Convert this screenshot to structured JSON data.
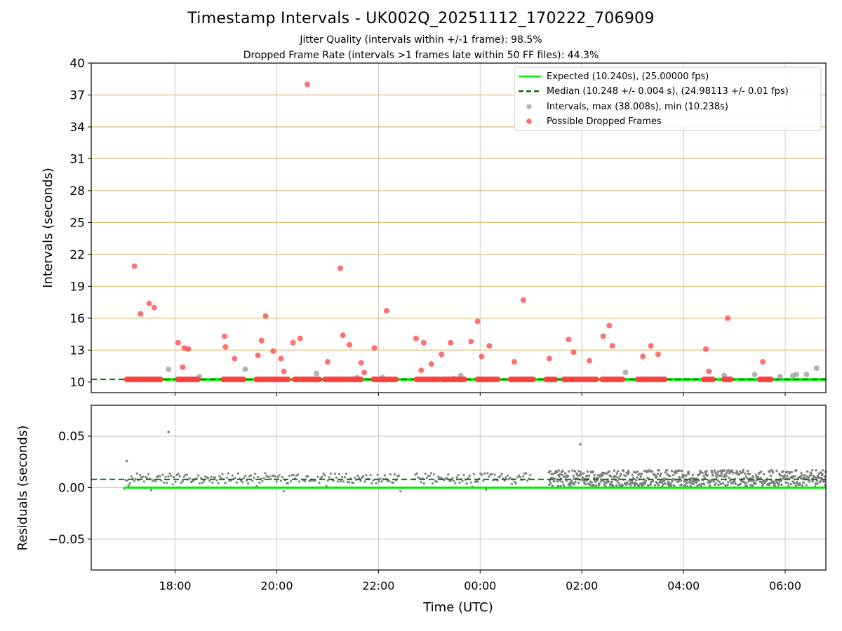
{
  "title": "Timestamp Intervals - UK002Q_20251112_170222_706909",
  "subtitle_lines": [
    "Jitter Quality (intervals within +/-1 frame): 98.5%",
    "Dropped Frame Rate (intervals >1 frames late within 50 FF files): 44.3%"
  ],
  "colors": {
    "expected": "#00ee00",
    "median": "#007700",
    "interval": "#a0a0a0",
    "dropped": "#ff4040",
    "residual": "#808080",
    "hgrid_top": "#d4b86a",
    "grid": "#c8c8c8"
  },
  "chart_data": [
    {
      "type": "scatter",
      "name": "intervals",
      "ylabel": "Intervals (seconds)",
      "ylim": [
        9,
        40
      ],
      "yticks": [
        10,
        13,
        16,
        19,
        22,
        25,
        28,
        31,
        34,
        37,
        40
      ],
      "xlim_hours": [
        16.35,
        30.8
      ],
      "legend_position": "top-right",
      "legend": [
        "Expected (10.240s), (25.00000 fps)",
        "Median (10.248 +/- 0.004 s), (24.98113 +/- 0.01 fps)",
        "Intervals, max (38.008s), min (10.238s)",
        "Possible Dropped Frames"
      ],
      "expected_value": 10.24,
      "median_value": 10.248,
      "expected_range_hours": [
        17.0,
        30.8
      ],
      "dropped_clusters": [
        [
          17.05,
          17.75
        ],
        [
          18.05,
          18.45
        ],
        [
          18.95,
          19.35
        ],
        [
          19.6,
          20.25
        ],
        [
          20.35,
          20.85
        ],
        [
          20.95,
          21.7
        ],
        [
          21.9,
          22.35
        ],
        [
          22.75,
          23.2
        ],
        [
          23.25,
          23.7
        ],
        [
          23.95,
          24.35
        ],
        [
          24.6,
          25.05
        ],
        [
          25.3,
          25.5
        ],
        [
          25.65,
          26.05
        ],
        [
          26.1,
          26.3
        ],
        [
          26.4,
          26.8
        ],
        [
          27.1,
          27.65
        ],
        [
          28.4,
          28.6
        ],
        [
          28.8,
          28.95
        ],
        [
          29.5,
          29.75
        ]
      ],
      "dropped_points": [
        {
          "x": 17.2,
          "y": 20.9
        },
        {
          "x": 17.32,
          "y": 16.4
        },
        {
          "x": 17.49,
          "y": 17.4
        },
        {
          "x": 17.59,
          "y": 17.0
        },
        {
          "x": 18.06,
          "y": 13.7
        },
        {
          "x": 18.15,
          "y": 11.4
        },
        {
          "x": 18.18,
          "y": 13.2
        },
        {
          "x": 18.26,
          "y": 13.1
        },
        {
          "x": 18.97,
          "y": 14.3
        },
        {
          "x": 18.99,
          "y": 13.3
        },
        {
          "x": 19.17,
          "y": 12.2
        },
        {
          "x": 19.63,
          "y": 12.5
        },
        {
          "x": 19.7,
          "y": 13.9
        },
        {
          "x": 19.78,
          "y": 16.2
        },
        {
          "x": 19.93,
          "y": 12.9
        },
        {
          "x": 20.08,
          "y": 12.2
        },
        {
          "x": 20.14,
          "y": 11.0
        },
        {
          "x": 20.32,
          "y": 13.7
        },
        {
          "x": 20.46,
          "y": 14.1
        },
        {
          "x": 20.6,
          "y": 38.0
        },
        {
          "x": 21.0,
          "y": 11.9
        },
        {
          "x": 21.25,
          "y": 20.7
        },
        {
          "x": 21.3,
          "y": 14.4
        },
        {
          "x": 21.43,
          "y": 13.5
        },
        {
          "x": 21.66,
          "y": 11.8
        },
        {
          "x": 21.72,
          "y": 10.9
        },
        {
          "x": 21.92,
          "y": 13.2
        },
        {
          "x": 22.16,
          "y": 16.7
        },
        {
          "x": 22.74,
          "y": 14.1
        },
        {
          "x": 22.84,
          "y": 11.1
        },
        {
          "x": 22.89,
          "y": 13.7
        },
        {
          "x": 23.04,
          "y": 11.7
        },
        {
          "x": 23.24,
          "y": 12.6
        },
        {
          "x": 23.42,
          "y": 13.7
        },
        {
          "x": 23.49,
          "y": 10.3
        },
        {
          "x": 23.82,
          "y": 13.8
        },
        {
          "x": 23.95,
          "y": 15.7
        },
        {
          "x": 24.03,
          "y": 12.4
        },
        {
          "x": 24.18,
          "y": 13.4
        },
        {
          "x": 24.67,
          "y": 11.9
        },
        {
          "x": 24.85,
          "y": 17.7
        },
        {
          "x": 25.36,
          "y": 12.2
        },
        {
          "x": 25.74,
          "y": 14.0
        },
        {
          "x": 25.84,
          "y": 12.8
        },
        {
          "x": 26.15,
          "y": 12.0
        },
        {
          "x": 26.42,
          "y": 14.3
        },
        {
          "x": 26.54,
          "y": 15.3
        },
        {
          "x": 26.6,
          "y": 13.4
        },
        {
          "x": 27.2,
          "y": 12.4
        },
        {
          "x": 27.36,
          "y": 13.4
        },
        {
          "x": 27.5,
          "y": 12.6
        },
        {
          "x": 28.44,
          "y": 13.1
        },
        {
          "x": 28.5,
          "y": 11.0
        },
        {
          "x": 28.87,
          "y": 16.0
        },
        {
          "x": 29.56,
          "y": 11.9
        }
      ],
      "interval_points": [
        {
          "x": 17.87,
          "y": 11.2
        },
        {
          "x": 18.48,
          "y": 10.5
        },
        {
          "x": 19.38,
          "y": 11.2
        },
        {
          "x": 20.78,
          "y": 10.8
        },
        {
          "x": 21.58,
          "y": 10.4
        },
        {
          "x": 22.08,
          "y": 10.4
        },
        {
          "x": 23.62,
          "y": 10.6
        },
        {
          "x": 26.86,
          "y": 10.9
        },
        {
          "x": 28.8,
          "y": 10.6
        },
        {
          "x": 29.4,
          "y": 10.7
        },
        {
          "x": 29.9,
          "y": 10.5
        },
        {
          "x": 30.15,
          "y": 10.6
        },
        {
          "x": 30.22,
          "y": 10.7
        },
        {
          "x": 30.42,
          "y": 10.7
        },
        {
          "x": 30.62,
          "y": 11.3
        }
      ]
    },
    {
      "type": "scatter",
      "name": "residuals",
      "ylabel": "Residuals (seconds)",
      "xlabel": "Time (UTC)",
      "ylim": [
        -0.08,
        0.08
      ],
      "yticks": [
        -0.05,
        0.0,
        0.05
      ],
      "ytick_labels": [
        "−0.05",
        "0.00",
        "0.05"
      ],
      "xticks_hours": [
        18,
        20,
        22,
        24,
        26,
        28,
        30
      ],
      "xtick_labels": [
        "18:00",
        "20:00",
        "22:00",
        "00:00",
        "02:00",
        "04:00",
        "06:00"
      ],
      "expected_value": 0.0,
      "median_value": 0.008,
      "sparse_segments": [
        [
          17.0,
          22.45
        ],
        [
          22.7,
          23.95
        ],
        [
          23.95,
          25.0
        ]
      ],
      "sparse_gaps": [
        [
          20.45,
          20.5
        ],
        [
          21.9,
          21.95
        ]
      ],
      "dense_segment": [
        25.35,
        30.8
      ],
      "dense_band": [
        0.001,
        0.017
      ],
      "outliers": [
        {
          "x": 17.05,
          "y": 0.026
        },
        {
          "x": 17.87,
          "y": 0.054
        },
        {
          "x": 25.97,
          "y": 0.042
        }
      ]
    }
  ]
}
